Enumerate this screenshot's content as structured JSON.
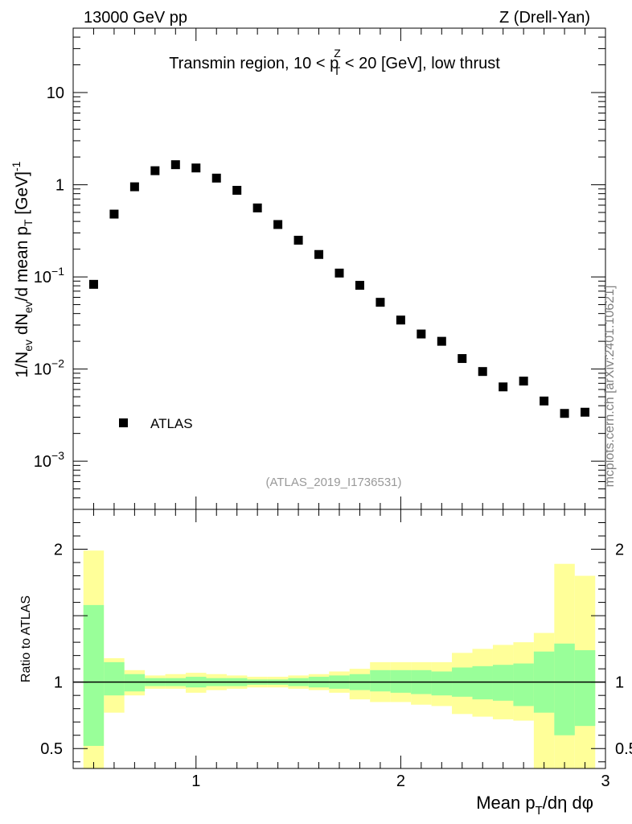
{
  "header": {
    "energy_label": "13000 GeV pp",
    "process_label": "Z (Drell-Yan)"
  },
  "credit": "mcplots.cern.ch [arXiv:2401.10621]",
  "colors": {
    "data_marker": "#000000",
    "band_outer": "#ffff99",
    "band_inner": "#99ff99",
    "watermark": "#999999",
    "credit": "#808080"
  },
  "chart_data": [
    {
      "type": "scatter",
      "title": "Transmin region, 10 < p_T^Z < 20 [GeV], low thrust",
      "title_parts": {
        "prefix": "Transmin region, 10 < p",
        "sup": "Z",
        "sub": "T",
        "suffix": " < 20 [GeV], low thrust"
      },
      "ylabel": "1/N_ev dN_ev/d mean p_T [GeV]^-1",
      "yscale": "log",
      "xlim": [
        0.4,
        3.0
      ],
      "ylim": [
        0.0003,
        50
      ],
      "x_ticks": [
        1,
        2,
        3
      ],
      "y_ticks": [
        {
          "value": 10,
          "label": "10"
        },
        {
          "value": 1,
          "label": "1"
        },
        {
          "value": 0.1,
          "base": "10",
          "exp": "−1"
        },
        {
          "value": 0.01,
          "base": "10",
          "exp": "−2"
        },
        {
          "value": 0.001,
          "base": "10",
          "exp": "−3"
        }
      ],
      "legend": {
        "label": "ATLAS",
        "placement": "bottom-left"
      },
      "watermark": "(ATLAS_2019_I1736531)",
      "series": [
        {
          "name": "ATLAS",
          "x": [
            0.5,
            0.6,
            0.7,
            0.8,
            0.9,
            1.0,
            1.1,
            1.2,
            1.3,
            1.4,
            1.5,
            1.6,
            1.7,
            1.8,
            1.9,
            2.0,
            2.1,
            2.2,
            2.3,
            2.4,
            2.5,
            2.6,
            2.7,
            2.8,
            2.9
          ],
          "y": [
            0.083,
            0.48,
            0.95,
            1.42,
            1.65,
            1.52,
            1.18,
            0.87,
            0.56,
            0.37,
            0.25,
            0.175,
            0.11,
            0.081,
            0.053,
            0.034,
            0.024,
            0.02,
            0.013,
            0.0094,
            0.0064,
            0.0074,
            0.0045,
            0.0033,
            0.0034
          ]
        }
      ]
    },
    {
      "type": "area",
      "ylabel": "Ratio to ATLAS",
      "xlabel": "Mean p_T/dη dφ",
      "xlabel_parts": {
        "prefix": "Mean p",
        "sub": "T",
        "suffix": "/dη dφ"
      },
      "xlim": [
        0.4,
        3.0
      ],
      "ylim": [
        0.35,
        2.3
      ],
      "x_ticks": [
        {
          "value": 1,
          "label": "1"
        },
        {
          "value": 2,
          "label": "2"
        },
        {
          "value": 3,
          "label": "3"
        }
      ],
      "y_ticks": [
        {
          "value": 0.5,
          "label": "0.5"
        },
        {
          "value": 1,
          "label": "1"
        },
        {
          "value": 2,
          "label": "2"
        }
      ],
      "reference_line": 1,
      "bins": [
        0.45,
        0.55,
        0.65,
        0.75,
        0.85,
        0.95,
        1.05,
        1.15,
        1.25,
        1.35,
        1.45,
        1.55,
        1.65,
        1.75,
        1.85,
        1.95,
        2.05,
        2.15,
        2.25,
        2.35,
        2.45,
        2.55,
        2.65,
        2.75,
        2.85,
        2.95
      ],
      "series": [
        {
          "name": "outer uncertainty band",
          "lo": [
            0.3,
            0.77,
            0.9,
            0.95,
            0.95,
            0.92,
            0.94,
            0.95,
            0.96,
            0.96,
            0.95,
            0.94,
            0.92,
            0.87,
            0.85,
            0.85,
            0.83,
            0.82,
            0.76,
            0.74,
            0.72,
            0.71,
            0.3,
            0.3,
            0.3
          ],
          "hi": [
            1.99,
            1.18,
            1.09,
            1.05,
            1.06,
            1.07,
            1.06,
            1.05,
            1.04,
            1.04,
            1.05,
            1.06,
            1.08,
            1.1,
            1.15,
            1.15,
            1.15,
            1.15,
            1.22,
            1.25,
            1.28,
            1.3,
            1.37,
            1.89,
            1.8
          ]
        },
        {
          "name": "inner uncertainty band",
          "lo": [
            0.52,
            0.9,
            0.93,
            0.97,
            0.97,
            0.96,
            0.97,
            0.97,
            0.98,
            0.98,
            0.97,
            0.96,
            0.95,
            0.94,
            0.93,
            0.92,
            0.91,
            0.9,
            0.89,
            0.87,
            0.86,
            0.82,
            0.77,
            0.6,
            0.67
          ],
          "hi": [
            1.58,
            1.15,
            1.06,
            1.03,
            1.03,
            1.04,
            1.03,
            1.03,
            1.02,
            1.02,
            1.03,
            1.04,
            1.05,
            1.06,
            1.09,
            1.09,
            1.09,
            1.08,
            1.11,
            1.12,
            1.13,
            1.14,
            1.23,
            1.29,
            1.24
          ]
        }
      ]
    }
  ]
}
